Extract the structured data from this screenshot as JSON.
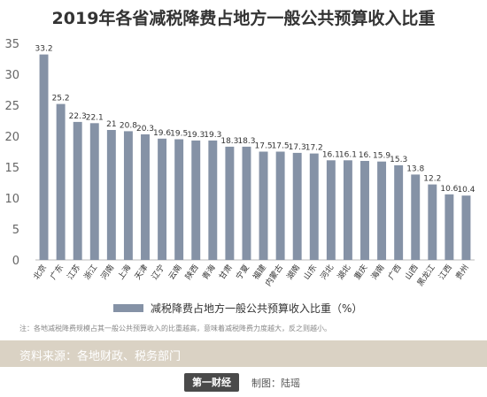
{
  "chart_data": {
    "type": "bar",
    "title": "2019年各省减税降费占地方一般公共预算收入比重",
    "legend": "减税降费占地方一般公共预算收入比重（%）",
    "categories": [
      "北京",
      "广东",
      "江苏",
      "浙江",
      "河南",
      "上海",
      "天津",
      "辽宁",
      "云南",
      "陕西",
      "青海",
      "甘肃",
      "宁夏",
      "福建",
      "内蒙古",
      "湖南",
      "山东",
      "河北",
      "湖北",
      "重庆",
      "海南",
      "广西",
      "山西",
      "黑龙江",
      "江西",
      "贵州"
    ],
    "values": [
      33.2,
      25.2,
      22.3,
      22.1,
      21,
      20.8,
      20.3,
      19.6,
      19.5,
      19.3,
      19.3,
      18.3,
      18.3,
      17.5,
      17.5,
      17.3,
      17.2,
      16.1,
      16.1,
      16,
      15.9,
      15.3,
      13.8,
      12.2,
      10.6,
      10.4
    ],
    "value_labels": [
      "33.2",
      "25.2",
      "22.3",
      "22.1",
      "21",
      "20.8",
      "20.3",
      "19.6",
      "19.5",
      "19.3",
      "19.3",
      "18.3",
      "18.3",
      "17.5",
      "17.5",
      "17.3",
      "17.2",
      "16.1",
      "16.1",
      "16.",
      "15.9",
      "15.3",
      "13.8",
      "12.2",
      "10.6",
      "10.4"
    ],
    "yticks": [
      "0",
      "5",
      "10",
      "15",
      "20",
      "25",
      "30",
      "35"
    ],
    "ylim": [
      0,
      35
    ],
    "grid": false,
    "legend_position": "bottom-center",
    "colors": {
      "bar": "#8592a6",
      "text": "#333333",
      "axis": "#666666"
    }
  },
  "note": "注：各地减税降费规模占其一般公共预算收入的比重越高，意味着减税降费力度越大，反之则越小。",
  "source": "资料来源：各地财政、税务部门",
  "logo": "第一财经",
  "credit": "制图：陆瑶"
}
